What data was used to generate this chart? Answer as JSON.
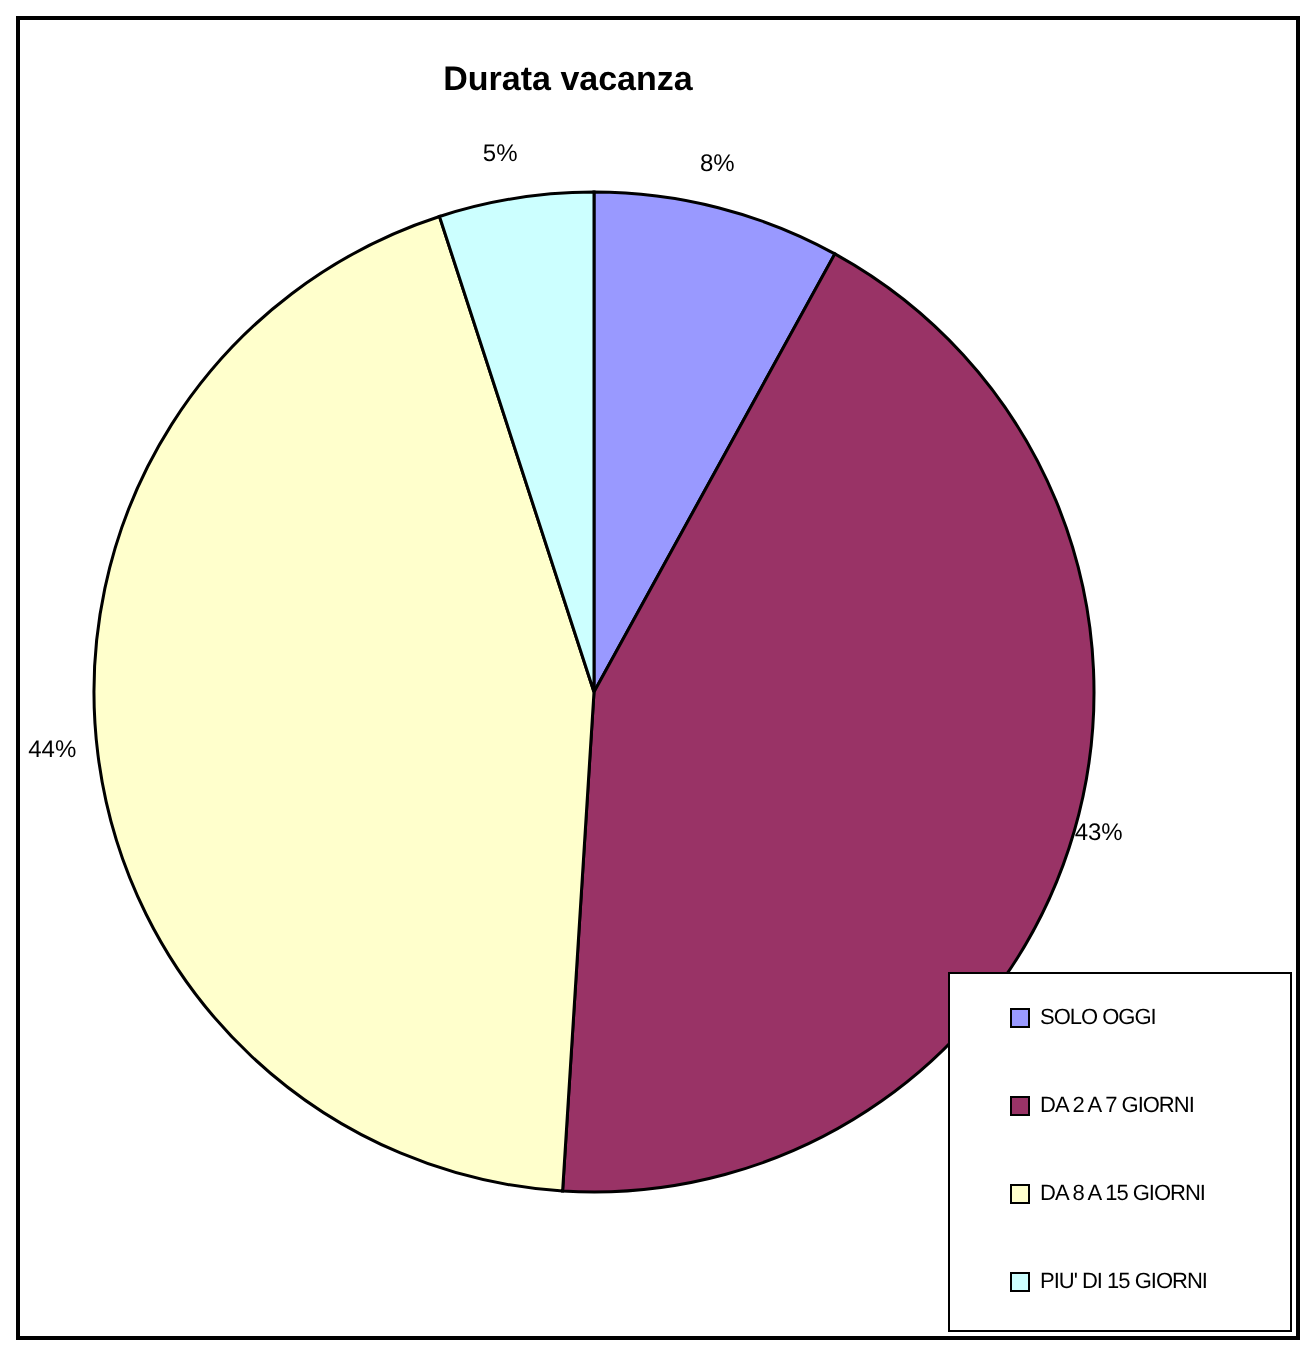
{
  "chart_data": {
    "type": "pie",
    "title": "Durata vacanza",
    "categories": [
      "SOLO OGGI",
      "DA 2 A 7 GIORNI",
      "DA 8 A 15 GIORNI",
      "PIU' DI 15 GIORNI"
    ],
    "values": [
      8,
      43,
      44,
      5
    ],
    "colors": [
      "#9999ff",
      "#993366",
      "#ffffcc",
      "#ccffff"
    ],
    "value_labels": [
      "8%",
      "43%",
      "44%",
      "5%"
    ],
    "legend": "bottom right"
  }
}
